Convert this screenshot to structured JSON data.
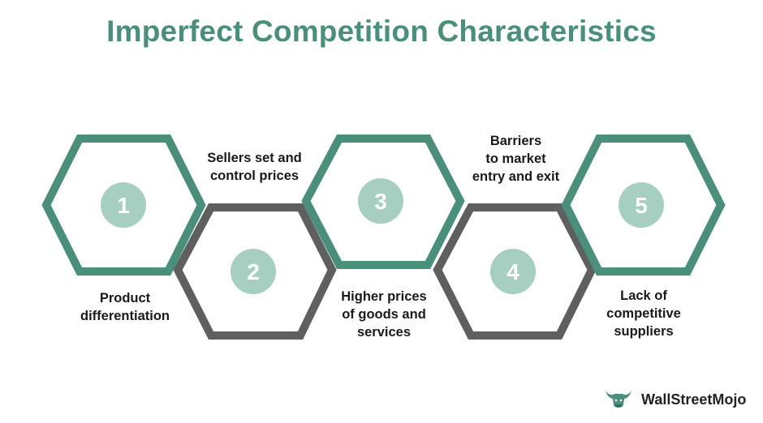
{
  "title": "Imperfect Competition Characteristics",
  "colors": {
    "teal": "#4a8f7c",
    "gray": "#5f5f5f",
    "circle": "#a6cfc2"
  },
  "steps": [
    {
      "number": "1",
      "lines": [
        "Product",
        "differentiation"
      ],
      "hex_color": "teal"
    },
    {
      "number": "2",
      "lines": [
        "Sellers set and",
        "control prices"
      ],
      "hex_color": "gray"
    },
    {
      "number": "3",
      "lines": [
        "Higher prices",
        "of goods and",
        "services"
      ],
      "hex_color": "teal"
    },
    {
      "number": "4",
      "lines": [
        "Barriers",
        "to market",
        "entry and exit"
      ],
      "hex_color": "gray"
    },
    {
      "number": "5",
      "lines": [
        "Lack of",
        "competitive",
        "suppliers"
      ],
      "hex_color": "teal"
    }
  ],
  "brand": {
    "name": "WallStreetMojo",
    "icon": "bull-logo-icon"
  }
}
